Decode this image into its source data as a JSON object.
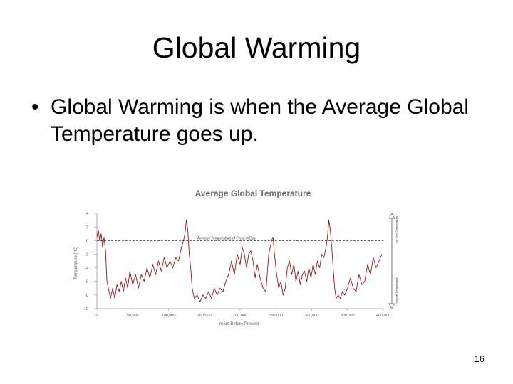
{
  "slide": {
    "title": "Global Warming",
    "bullet": "Global Warming is when the Average Global Temperature goes up.",
    "number": "16"
  },
  "chart_data": {
    "type": "line",
    "title": "Average Global Temperature",
    "xlabel": "Years Before Present",
    "ylabel": "Temperature (°C)",
    "xlim": [
      0,
      400000
    ],
    "ylim": [
      -10,
      4
    ],
    "x_ticks": [
      "0",
      "50,000",
      "100,000",
      "150,000",
      "200,000",
      "250,000",
      "300,000",
      "350,000",
      "400,000"
    ],
    "y_ticks": [
      "4",
      "2",
      "0",
      "-2",
      "-4",
      "-6",
      "-8",
      "-10"
    ],
    "reference_line": {
      "label": "Average Temperature of Present Day",
      "y": 0
    },
    "range_labels": {
      "top": "Ice Free Temperature",
      "bottom": "Glacial Temperature"
    },
    "line_color": "#8b1a1a",
    "series": [
      {
        "values": [
          [
            0,
            0.5
          ],
          [
            2000,
            1.5
          ],
          [
            4000,
            0
          ],
          [
            6000,
            1
          ],
          [
            8000,
            -1
          ],
          [
            10000,
            0.5
          ],
          [
            12000,
            -1.5
          ],
          [
            14000,
            -6
          ],
          [
            16000,
            -7
          ],
          [
            19000,
            -8.5
          ],
          [
            22000,
            -7
          ],
          [
            25000,
            -8.5
          ],
          [
            28000,
            -6.5
          ],
          [
            31000,
            -7.5
          ],
          [
            34000,
            -6
          ],
          [
            37000,
            -7.5
          ],
          [
            40000,
            -5.5
          ],
          [
            43000,
            -7
          ],
          [
            46000,
            -4.5
          ],
          [
            50000,
            -6.5
          ],
          [
            54000,
            -5
          ],
          [
            58000,
            -7
          ],
          [
            62000,
            -5
          ],
          [
            66000,
            -6
          ],
          [
            70000,
            -4
          ],
          [
            74000,
            -5.5
          ],
          [
            78000,
            -3.5
          ],
          [
            82000,
            -5
          ],
          [
            86000,
            -3
          ],
          [
            90000,
            -4.5
          ],
          [
            94000,
            -2.5
          ],
          [
            98000,
            -4
          ],
          [
            102000,
            -3
          ],
          [
            106000,
            -4
          ],
          [
            110000,
            -2.5
          ],
          [
            114000,
            -3
          ],
          [
            118000,
            -1
          ],
          [
            121000,
            0
          ],
          [
            123000,
            1
          ],
          [
            125000,
            3
          ],
          [
            127000,
            1.5
          ],
          [
            129000,
            -2
          ],
          [
            131000,
            -4
          ],
          [
            133000,
            -7
          ],
          [
            136000,
            -8.5
          ],
          [
            140000,
            -8
          ],
          [
            144000,
            -9
          ],
          [
            148000,
            -8
          ],
          [
            152000,
            -8.5
          ],
          [
            156000,
            -7.5
          ],
          [
            160000,
            -8.5
          ],
          [
            164000,
            -7
          ],
          [
            168000,
            -8
          ],
          [
            172000,
            -7
          ],
          [
            176000,
            -7.5
          ],
          [
            180000,
            -6
          ],
          [
            184000,
            -5
          ],
          [
            188000,
            -3
          ],
          [
            192000,
            -5
          ],
          [
            196000,
            -2
          ],
          [
            200000,
            -3.5
          ],
          [
            203000,
            -1
          ],
          [
            206000,
            -2
          ],
          [
            209000,
            -4
          ],
          [
            212000,
            -2
          ],
          [
            215000,
            -1.5
          ],
          [
            218000,
            -3
          ],
          [
            221000,
            -5.5
          ],
          [
            224000,
            -3.5
          ],
          [
            228000,
            -5.5
          ],
          [
            232000,
            -7
          ],
          [
            236000,
            -7.5
          ],
          [
            240000,
            -2
          ],
          [
            242000,
            -1
          ],
          [
            244000,
            0
          ],
          [
            246000,
            0.5
          ],
          [
            248000,
            -2
          ],
          [
            251000,
            -5
          ],
          [
            254000,
            -7
          ],
          [
            257000,
            -6
          ],
          [
            260000,
            -8
          ],
          [
            263000,
            -7
          ],
          [
            266000,
            -4
          ],
          [
            269000,
            -3
          ],
          [
            272000,
            -5
          ],
          [
            275000,
            -3.5
          ],
          [
            278000,
            -6
          ],
          [
            281000,
            -4.5
          ],
          [
            284000,
            -6.5
          ],
          [
            287000,
            -5
          ],
          [
            290000,
            -4.5
          ],
          [
            293000,
            -6
          ],
          [
            296000,
            -4
          ],
          [
            299000,
            -5.5
          ],
          [
            302000,
            -3.5
          ],
          [
            305000,
            -5
          ],
          [
            308000,
            -3
          ],
          [
            311000,
            -4
          ],
          [
            314000,
            -2
          ],
          [
            317000,
            -2.5
          ],
          [
            320000,
            -1
          ],
          [
            322000,
            0.5
          ],
          [
            324000,
            3
          ],
          [
            326000,
            1.5
          ],
          [
            328000,
            -1
          ],
          [
            330000,
            -4
          ],
          [
            332000,
            -7
          ],
          [
            334000,
            -8.5
          ],
          [
            337000,
            -8
          ],
          [
            340000,
            -8.5
          ],
          [
            343000,
            -7.5
          ],
          [
            346000,
            -8
          ],
          [
            350000,
            -7
          ],
          [
            354000,
            -5.5
          ],
          [
            358000,
            -7
          ],
          [
            362000,
            -7.5
          ],
          [
            366000,
            -5
          ],
          [
            370000,
            -6.5
          ],
          [
            374000,
            -6
          ],
          [
            378000,
            -3.5
          ],
          [
            382000,
            -5
          ],
          [
            386000,
            -2.5
          ],
          [
            390000,
            -4
          ],
          [
            394000,
            -3
          ],
          [
            398000,
            -2
          ]
        ]
      }
    ]
  }
}
